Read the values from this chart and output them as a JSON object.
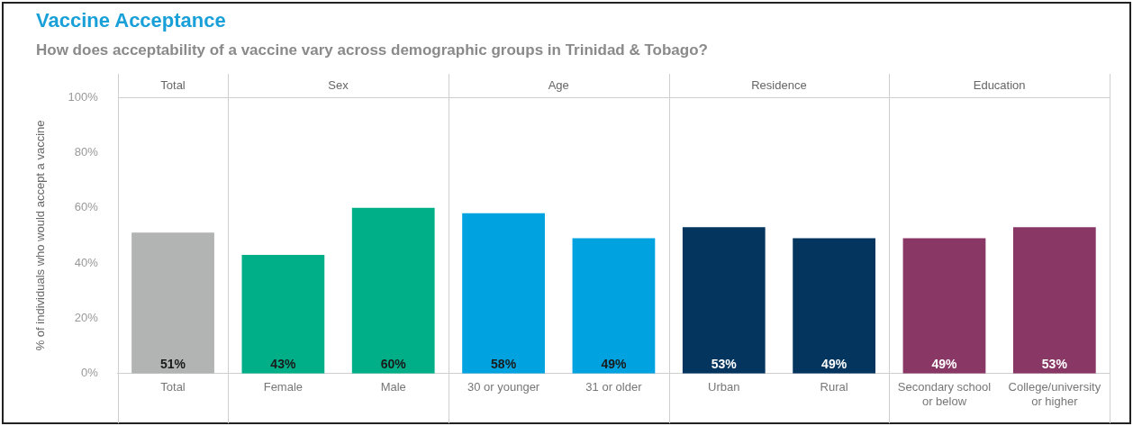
{
  "chart_data": {
    "type": "bar",
    "title": "Vaccine Acceptance",
    "subtitle": "How does acceptability of a vaccine vary across demographic groups in Trinidad & Tobago?",
    "ylabel": "% of individuals who would accept a vaccine",
    "categories": [
      "Total",
      "Female",
      "Male",
      "30 or younger",
      "31 or older",
      "Urban",
      "Rural",
      "Secondary school or below",
      "College/university or higher"
    ],
    "values": [
      51,
      43,
      60,
      58,
      49,
      53,
      49,
      49,
      53
    ],
    "colors": [
      "#b1b4b3",
      "#00ae88",
      "#00ae88",
      "#00a3e0",
      "#00a3e0",
      "#04355f",
      "#04355f",
      "#893866",
      "#893866"
    ],
    "ylim": [
      0,
      100
    ],
    "yticks": [
      {
        "value": 0,
        "label": "0%"
      },
      {
        "value": 20,
        "label": "20%"
      },
      {
        "value": 40,
        "label": "40%"
      },
      {
        "value": 60,
        "label": "60%"
      },
      {
        "value": 80,
        "label": "80%"
      },
      {
        "value": 100,
        "label": "100%"
      }
    ],
    "value_labels": [
      "51%",
      "43%",
      "60%",
      "58%",
      "49%",
      "53%",
      "49%",
      "49%",
      "53%"
    ],
    "annotations": [
      "Total",
      "Sex",
      "Age",
      "Residence",
      "Education"
    ],
    "grid": false,
    "legend": false
  }
}
